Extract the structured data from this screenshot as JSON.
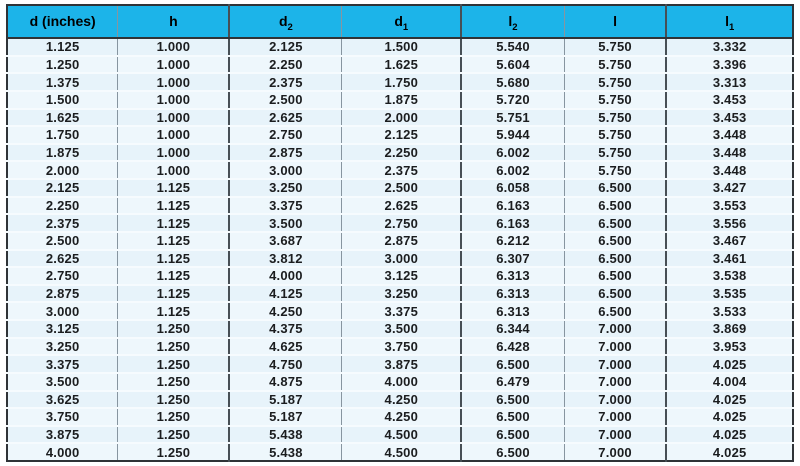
{
  "colors": {
    "header_bg": "#1cb4e9",
    "row_odd": "#e7f3fa",
    "row_even": "#eef7fc",
    "grid_line": "#8795a0",
    "grid_line_heavy": "#474f55",
    "outer_border": "#2f3337",
    "row_divider": "#f6fbfe",
    "text": "#1b1d1f"
  },
  "table": {
    "headers": [
      {
        "label": "d (inches)",
        "sub": ""
      },
      {
        "label": "h",
        "sub": ""
      },
      {
        "label": "d",
        "sub": "2"
      },
      {
        "label": "d",
        "sub": "1"
      },
      {
        "label": "l",
        "sub": "2"
      },
      {
        "label": "l",
        "sub": ""
      },
      {
        "label": "l",
        "sub": "1"
      }
    ],
    "column_widths_percent": [
      14.1,
      14.2,
      14.3,
      15.2,
      13.1,
      13.0,
      16.1
    ],
    "rows": [
      [
        "1.125",
        "1.000",
        "2.125",
        "1.500",
        "5.540",
        "5.750",
        "3.332"
      ],
      [
        "1.250",
        "1.000",
        "2.250",
        "1.625",
        "5.604",
        "5.750",
        "3.396"
      ],
      [
        "1.375",
        "1.000",
        "2.375",
        "1.750",
        "5.680",
        "5.750",
        "3.313"
      ],
      [
        "1.500",
        "1.000",
        "2.500",
        "1.875",
        "5.720",
        "5.750",
        "3.453"
      ],
      [
        "1.625",
        "1.000",
        "2.625",
        "2.000",
        "5.751",
        "5.750",
        "3.453"
      ],
      [
        "1.750",
        "1.000",
        "2.750",
        "2.125",
        "5.944",
        "5.750",
        "3.448"
      ],
      [
        "1.875",
        "1.000",
        "2.875",
        "2.250",
        "6.002",
        "5.750",
        "3.448"
      ],
      [
        "2.000",
        "1.000",
        "3.000",
        "2.375",
        "6.002",
        "5.750",
        "3.448"
      ],
      [
        "2.125",
        "1.125",
        "3.250",
        "2.500",
        "6.058",
        "6.500",
        "3.427"
      ],
      [
        "2.250",
        "1.125",
        "3.375",
        "2.625",
        "6.163",
        "6.500",
        "3.553"
      ],
      [
        "2.375",
        "1.125",
        "3.500",
        "2.750",
        "6.163",
        "6.500",
        "3.556"
      ],
      [
        "2.500",
        "1.125",
        "3.687",
        "2.875",
        "6.212",
        "6.500",
        "3.467"
      ],
      [
        "2.625",
        "1.125",
        "3.812",
        "3.000",
        "6.307",
        "6.500",
        "3.461"
      ],
      [
        "2.750",
        "1.125",
        "4.000",
        "3.125",
        "6.313",
        "6.500",
        "3.538"
      ],
      [
        "2.875",
        "1.125",
        "4.125",
        "3.250",
        "6.313",
        "6.500",
        "3.535"
      ],
      [
        "3.000",
        "1.125",
        "4.250",
        "3.375",
        "6.313",
        "6.500",
        "3.533"
      ],
      [
        "3.125",
        "1.250",
        "4.375",
        "3.500",
        "6.344",
        "7.000",
        "3.869"
      ],
      [
        "3.250",
        "1.250",
        "4.625",
        "3.750",
        "6.428",
        "7.000",
        "3.953"
      ],
      [
        "3.375",
        "1.250",
        "4.750",
        "3.875",
        "6.500",
        "7.000",
        "4.025"
      ],
      [
        "3.500",
        "1.250",
        "4.875",
        "4.000",
        "6.479",
        "7.000",
        "4.004"
      ],
      [
        "3.625",
        "1.250",
        "5.187",
        "4.250",
        "6.500",
        "7.000",
        "4.025"
      ],
      [
        "3.750",
        "1.250",
        "5.187",
        "4.250",
        "6.500",
        "7.000",
        "4.025"
      ],
      [
        "3.875",
        "1.250",
        "5.438",
        "4.500",
        "6.500",
        "7.000",
        "4.025"
      ],
      [
        "4.000",
        "1.250",
        "5.438",
        "4.500",
        "6.500",
        "7.000",
        "4.025"
      ]
    ]
  }
}
